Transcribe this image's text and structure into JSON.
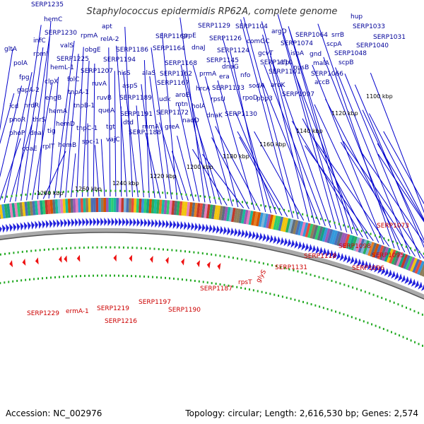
{
  "title": "Staphylococcus epidermidis RP62A, complete genome",
  "footer": {
    "accession": "Accession: NC_002976",
    "summary": "Topology: circular; Length: 2,616,530 bp; Genes: 2,574"
  },
  "colors": {
    "top_labels": "#000099",
    "bottom_labels": "#cc0000",
    "forward_arrows": "#2222dd",
    "backbone": "#888888",
    "ticks": "#22aa22"
  },
  "ticks": [
    "1100 kbp",
    "1120 kbp",
    "1140 kbp",
    "1160 kbp",
    "1180 kbp",
    "1200 kbp",
    "1220 kbp",
    "1240 kbp",
    "1260 kbp",
    "1280 kbp"
  ],
  "top_labels": [
    "SERP1235",
    "hemC",
    "infC",
    "SERP1230",
    "rpmA",
    "apt",
    "relA-2",
    "SERP1169",
    "grpE",
    "SERP1129",
    "SERP1104",
    "argD",
    "hup",
    "gltA",
    "rpmI",
    "valS",
    "obgE",
    "SERP1186",
    "SERP1164",
    "dnaJ",
    "SERP1126",
    "comGC",
    "SERP1064",
    "srrB",
    "SERP1033",
    "polA",
    "SERP1225",
    "SERP1194",
    "SERP1124",
    "SERP1074",
    "scpA",
    "SERP1031",
    "fpg",
    "hemL-1",
    "folC",
    "SERP1207",
    "ruvA",
    "hisS",
    "SERP1168",
    "SERP1145",
    "gcvT",
    "ispA",
    "gnd",
    "SERP1048",
    "SERP1040",
    "gapA-2",
    "clpX",
    "tnpA-1",
    "ruvB",
    "aspS",
    "alaS",
    "SERP1162",
    "prmA",
    "dnaG",
    "SERP1110",
    "efp",
    "malA",
    "scpB",
    "icd",
    "nrdR",
    "engB",
    "tnpB-1",
    "queA",
    "SERP1189",
    "SERP1167",
    "era",
    "nfo",
    "SERP1101",
    "nusB",
    "SERP1066",
    "thrS",
    "hemA",
    "hemD",
    "tnpC-1",
    "tgt",
    "udk",
    "aroE",
    "hrcA",
    "SERP1133",
    "sodA",
    "aroK",
    "accB",
    "phoR",
    "phoP",
    "dnaI",
    "tig",
    "hemB",
    "spc-1",
    "SERP1191",
    "dtd",
    "SERP1172",
    "mtn",
    "holA",
    "rpsU",
    "rpoD",
    "SERP1097",
    "coaE",
    "rplT",
    "vajC",
    "SERP1188",
    "rnmA",
    "greA",
    "nadD",
    "dnaK",
    "SERP1130",
    "pbp3"
  ],
  "bottom_labels": [
    "SERP1229",
    "ermA-1",
    "SERP1219",
    "SERP1216",
    "SERP1197",
    "SERP1190",
    "SERP1187",
    "rpsT",
    "glyS",
    "SERP1131",
    "SERP1118",
    "SERP1098",
    "SERP1096",
    "SERP1095",
    "SERP1073"
  ]
}
